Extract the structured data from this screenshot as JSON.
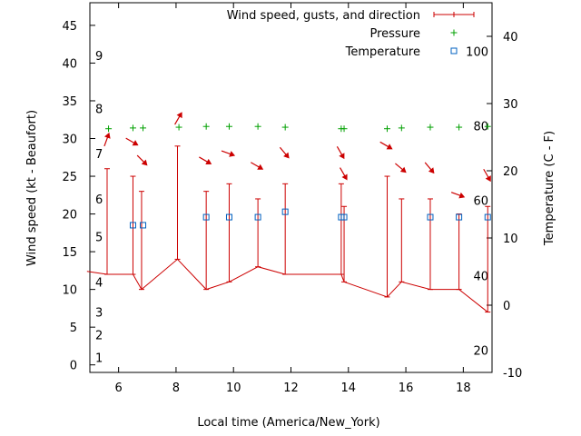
{
  "chart_data": {
    "type": "line",
    "xlabel": "Local time (America/New_York)",
    "ylabel_left": "Wind speed (kt - Beaufort)",
    "ylabel_right": "Temperature (C - F)",
    "xlim": [
      5,
      19
    ],
    "ylim_left": [
      -1,
      48
    ],
    "ylim_right": [
      -10,
      45
    ],
    "x_ticks": [
      6,
      8,
      10,
      12,
      14,
      16,
      18
    ],
    "y_ticks_left": [
      0,
      5,
      10,
      15,
      20,
      25,
      30,
      35,
      40,
      45
    ],
    "y_ticks_right": [
      -10,
      0,
      10,
      20,
      30,
      40
    ],
    "beaufort_labels": [
      {
        "label": "1",
        "value": 1
      },
      {
        "label": "2",
        "value": 4
      },
      {
        "label": "3",
        "value": 7
      },
      {
        "label": "4",
        "value": 11
      },
      {
        "label": "5",
        "value": 17
      },
      {
        "label": "6",
        "value": 22
      },
      {
        "label": "7",
        "value": 28
      },
      {
        "label": "8",
        "value": 34
      },
      {
        "label": "9",
        "value": 41
      }
    ],
    "fahrenheit_labels": [
      {
        "label": "20",
        "value": -6.7
      },
      {
        "label": "40",
        "value": 4.4
      },
      {
        "label": "60",
        "value": 15.6
      },
      {
        "label": "80",
        "value": 26.7
      },
      {
        "label": "100",
        "value": 37.8
      }
    ],
    "legend": [
      {
        "name": "Wind speed, gusts, and direction",
        "color": "#cc0000",
        "symbol": "line"
      },
      {
        "name": "Pressure",
        "color": "#00a000",
        "symbol": "plus"
      },
      {
        "name": "Temperature",
        "color": "#0060c0",
        "symbol": "square"
      }
    ],
    "legend_position": "top-right",
    "series": [
      {
        "key": "wind",
        "color": "#cc0000",
        "x": [
          4.9,
          5.6,
          6.5,
          6.8,
          8.05,
          9.05,
          9.85,
          10.85,
          11.8,
          13.75,
          13.85,
          15.35,
          15.85,
          16.85,
          17.85,
          18.85
        ],
        "values": [
          12.4,
          12,
          12,
          10,
          14,
          10,
          11,
          13,
          12,
          12,
          11,
          9,
          11,
          10,
          10,
          7
        ],
        "gusts": [
          null,
          26,
          25,
          23,
          29,
          23,
          24,
          22,
          24,
          24,
          21,
          25,
          22,
          22,
          20,
          21
        ],
        "direction_arrows_x": [
          5.6,
          6.5,
          6.85,
          8.1,
          9.05,
          9.85,
          10.85,
          11.8,
          13.75,
          13.85,
          15.35,
          15.85,
          16.85,
          17.85,
          18.85
        ],
        "direction_arrows_y": [
          30,
          29.5,
          27,
          32.8,
          27,
          28,
          26.3,
          28,
          28,
          25.2,
          29,
          26,
          26,
          22.5,
          25
        ],
        "direction_deg": [
          200,
          300,
          315,
          210,
          300,
          290,
          300,
          320,
          330,
          330,
          300,
          310,
          320,
          290,
          330
        ]
      },
      {
        "key": "pressure",
        "color": "#00a000",
        "x": [
          5.65,
          6.5,
          6.85,
          8.1,
          9.05,
          9.85,
          10.85,
          11.8,
          13.75,
          13.85,
          15.35,
          15.85,
          16.85,
          17.85,
          18.85
        ],
        "values": [
          31.3,
          31.4,
          31.4,
          31.5,
          31.6,
          31.6,
          31.6,
          31.5,
          31.3,
          31.3,
          31.3,
          31.4,
          31.5,
          31.5,
          31.6
        ]
      },
      {
        "key": "temperature",
        "color": "#0060c0",
        "x": [
          6.5,
          6.85,
          9.05,
          9.85,
          10.85,
          11.8,
          13.75,
          13.85,
          16.85,
          17.85,
          18.85
        ],
        "values": [
          11.9,
          11.9,
          13.1,
          13.1,
          13.1,
          13.9,
          13.1,
          13.1,
          13.1,
          13.1,
          13.1
        ]
      }
    ]
  }
}
